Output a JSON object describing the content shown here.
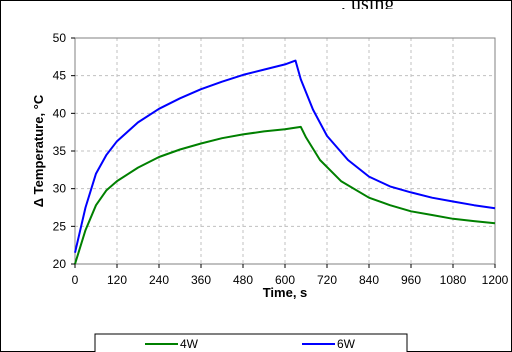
{
  "top_text": ", using",
  "chart_data": {
    "type": "line",
    "xlabel": "Time, s",
    "ylabel": "Δ Temperature, °C",
    "xlim": [
      0,
      1200
    ],
    "ylim": [
      20,
      50
    ],
    "xticks": [
      0,
      120,
      240,
      360,
      480,
      600,
      720,
      840,
      960,
      1080,
      1200
    ],
    "yticks": [
      20,
      25,
      30,
      35,
      40,
      45,
      50
    ],
    "grid": true,
    "legend_position": "bottom",
    "series": [
      {
        "name": "4W",
        "color": "#008000",
        "x": [
          0,
          30,
          60,
          90,
          120,
          180,
          240,
          300,
          360,
          420,
          480,
          540,
          600,
          645,
          660,
          700,
          760,
          840,
          900,
          960,
          1020,
          1080,
          1140,
          1200
        ],
        "y": [
          20,
          24.5,
          27.8,
          29.8,
          31.0,
          32.8,
          34.2,
          35.2,
          36.0,
          36.7,
          37.2,
          37.6,
          37.9,
          38.2,
          36.8,
          33.8,
          31.0,
          28.8,
          27.8,
          27.0,
          26.5,
          26.0,
          25.7,
          25.4
        ]
      },
      {
        "name": "6W",
        "color": "#0000ff",
        "x": [
          0,
          30,
          60,
          90,
          120,
          180,
          240,
          300,
          360,
          420,
          480,
          540,
          600,
          630,
          645,
          680,
          720,
          780,
          840,
          900,
          960,
          1020,
          1080,
          1140,
          1200
        ],
        "y": [
          21.5,
          27.5,
          32.0,
          34.5,
          36.3,
          38.8,
          40.6,
          42.0,
          43.2,
          44.2,
          45.1,
          45.8,
          46.5,
          47.0,
          44.5,
          40.5,
          37.0,
          33.8,
          31.6,
          30.3,
          29.5,
          28.8,
          28.3,
          27.8,
          27.4
        ]
      }
    ]
  }
}
